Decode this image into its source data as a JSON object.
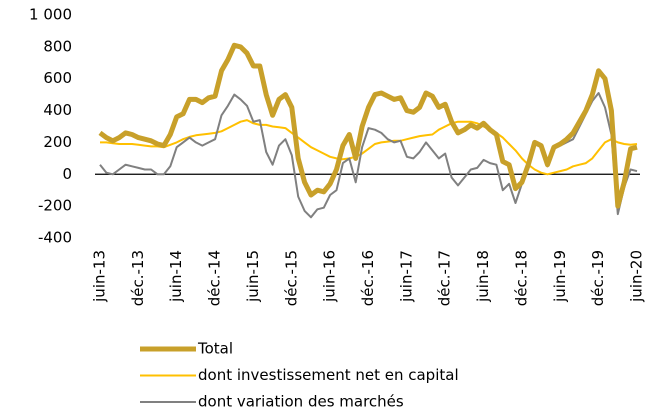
{
  "chart_data": {
    "type": "line",
    "categories": [
      "juin-13",
      null,
      null,
      null,
      null,
      null,
      "déc.-13",
      null,
      null,
      null,
      null,
      null,
      "juin-14",
      null,
      null,
      null,
      null,
      null,
      "déc.-14",
      null,
      null,
      null,
      null,
      null,
      "juin-15",
      null,
      null,
      null,
      null,
      null,
      "déc.-15",
      null,
      null,
      null,
      null,
      null,
      "juin-16",
      null,
      null,
      null,
      null,
      null,
      "déc.-16",
      null,
      null,
      null,
      null,
      null,
      "juin-17",
      null,
      null,
      null,
      null,
      null,
      "déc.-17",
      null,
      null,
      null,
      null,
      null,
      "juin-18",
      null,
      null,
      null,
      null,
      null,
      "déc.-18",
      null,
      null,
      null,
      null,
      null,
      "juin-19",
      null,
      null,
      null,
      null,
      null,
      "déc.-19",
      null,
      null,
      null,
      null,
      null,
      "juin-20"
    ],
    "series": [
      {
        "name": "Total",
        "color": "#c8a02a",
        "values": [
          260,
          230,
          210,
          230,
          260,
          250,
          230,
          220,
          210,
          190,
          180,
          250,
          360,
          380,
          470,
          470,
          450,
          480,
          490,
          650,
          720,
          810,
          800,
          760,
          680,
          680,
          500,
          370,
          470,
          500,
          420,
          100,
          -50,
          -130,
          -100,
          -110,
          -60,
          30,
          180,
          250,
          100,
          300,
          420,
          500,
          510,
          490,
          470,
          480,
          400,
          390,
          420,
          510,
          490,
          420,
          440,
          330,
          260,
          280,
          310,
          290,
          320,
          280,
          250,
          80,
          60,
          -90,
          -50,
          60,
          200,
          180,
          60,
          170,
          190,
          220,
          260,
          330,
          400,
          500,
          650,
          600,
          400,
          -200,
          -50,
          160,
          170
        ]
      },
      {
        "name": "dont investissement net en capital",
        "color": "#ffc000",
        "values": [
          200,
          200,
          195,
          190,
          190,
          190,
          185,
          180,
          175,
          175,
          170,
          185,
          200,
          220,
          235,
          245,
          250,
          255,
          260,
          270,
          290,
          310,
          330,
          340,
          320,
          310,
          310,
          300,
          295,
          290,
          260,
          230,
          200,
          170,
          150,
          130,
          110,
          100,
          95,
          100,
          110,
          130,
          160,
          190,
          200,
          205,
          210,
          210,
          220,
          230,
          240,
          245,
          250,
          280,
          300,
          320,
          330,
          330,
          330,
          320,
          300,
          280,
          260,
          230,
          190,
          150,
          100,
          60,
          30,
          10,
          0,
          10,
          20,
          30,
          50,
          60,
          70,
          100,
          150,
          200,
          220,
          200,
          190,
          185,
          190
        ]
      },
      {
        "name": "dont variation des marchés",
        "color": "#808080",
        "values": [
          60,
          10,
          0,
          30,
          60,
          50,
          40,
          30,
          30,
          0,
          0,
          50,
          170,
          200,
          230,
          200,
          180,
          200,
          220,
          370,
          430,
          500,
          470,
          430,
          330,
          340,
          140,
          60,
          180,
          220,
          120,
          -140,
          -230,
          -270,
          -220,
          -210,
          -130,
          -100,
          70,
          100,
          -50,
          170,
          290,
          280,
          260,
          220,
          200,
          210,
          110,
          100,
          140,
          200,
          150,
          100,
          130,
          -20,
          -70,
          -20,
          30,
          40,
          90,
          70,
          60,
          -100,
          -60,
          -180,
          -60,
          40,
          190,
          170,
          50,
          160,
          180,
          200,
          220,
          300,
          380,
          460,
          510,
          420,
          250,
          -250,
          -80,
          30,
          20
        ]
      }
    ],
    "ylim": [
      -400,
      1000
    ],
    "yticks": [
      {
        "value": 1000,
        "label": "1 000"
      },
      800,
      600,
      400,
      200,
      0,
      -200,
      -400
    ]
  }
}
